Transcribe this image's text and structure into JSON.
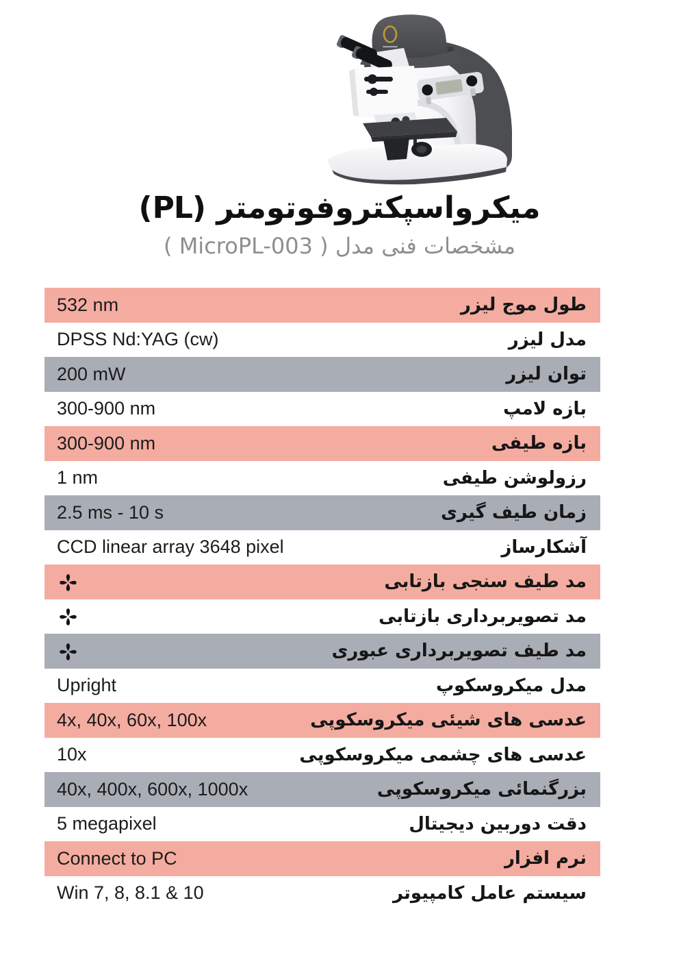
{
  "header": {
    "title": "میکرواسپکتروفوتومتر (PL)",
    "subtitle": "مشخصات فنی مدل ( MicroPL-003 )"
  },
  "colors": {
    "salmon": "#F4ACA0",
    "gray": "#A9ADB5",
    "label_text": "#161616",
    "value_text": "#1C1C1C",
    "logo_ring": "#C09A35"
  },
  "icons": {
    "mode_supported": "four-petal-asterisk"
  },
  "table": {
    "rows": [
      {
        "label": "طول موج لیزر",
        "value": "532 nm",
        "bg": "salmon",
        "icon": false
      },
      {
        "label": "مدل لیزر",
        "value": "DPSS Nd:YAG (cw)",
        "bg": "white",
        "icon": false
      },
      {
        "label": "توان لیزر",
        "value": "200 mW",
        "bg": "gray",
        "icon": false
      },
      {
        "label": "بازه لامپ",
        "value": "300-900 nm",
        "bg": "white",
        "icon": false
      },
      {
        "label": "بازه طیفی",
        "value": "300-900 nm",
        "bg": "salmon",
        "icon": false
      },
      {
        "label": "رزولوشن طیفی",
        "value": "1 nm",
        "bg": "white",
        "icon": false
      },
      {
        "label": "زمان طیف گیری",
        "value": "2.5 ms - 10 s",
        "bg": "gray",
        "icon": false
      },
      {
        "label": "آشکارساز",
        "value": "CCD linear array 3648 pixel",
        "bg": "white",
        "icon": false
      },
      {
        "label": "مد  طیف سنجی بازتابی",
        "value": "",
        "bg": "salmon",
        "icon": true
      },
      {
        "label": "مد  تصویربرداری بازتابی",
        "value": "",
        "bg": "white",
        "icon": true
      },
      {
        "label": "مد  طیف تصویربرداری عبوری",
        "value": "",
        "bg": "gray",
        "icon": true
      },
      {
        "label": "مدل میکروسکوپ",
        "value": "Upright",
        "bg": "white",
        "icon": false
      },
      {
        "label": "عدسی های شیئی میکروسکوپی",
        "value": "4x, 40x, 60x, 100x",
        "bg": "salmon",
        "icon": false
      },
      {
        "label": "عدسی های چشمی میکروسکوپی",
        "value": "10x",
        "bg": "white",
        "icon": false
      },
      {
        "label": "بزرگنمائی میکروسکوپی",
        "value": "40x, 400x, 600x, 1000x",
        "bg": "gray",
        "icon": false
      },
      {
        "label": "دقت دوربین دیجیتال",
        "value": "5 megapixel",
        "bg": "white",
        "icon": false
      },
      {
        "label": "نرم افزار",
        "value": "Connect to PC",
        "bg": "salmon",
        "icon": false
      },
      {
        "label": "سیستم عامل کامپیوتر",
        "value": "Win 7, 8, 8.1 & 10",
        "bg": "white",
        "icon": false
      }
    ]
  }
}
